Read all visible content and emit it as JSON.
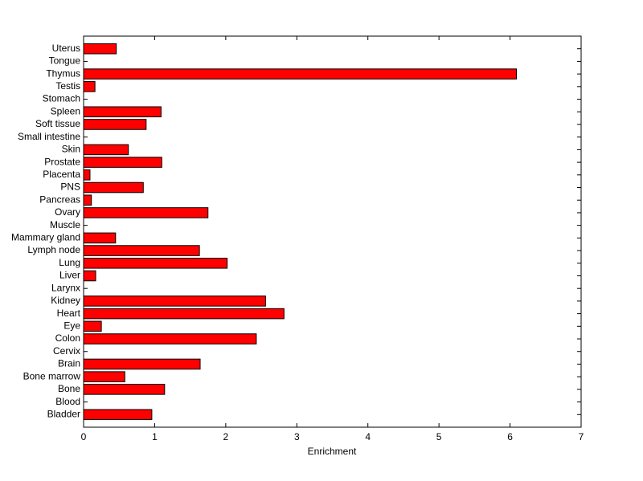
{
  "chart_data": {
    "type": "barh",
    "x_label": "Enrichment",
    "categories": [
      "Uterus",
      "Tongue",
      "Thymus",
      "Testis",
      "Stomach",
      "Spleen",
      "Soft tissue",
      "Small intestine",
      "Skin",
      "Prostate",
      "Placenta",
      "PNS",
      "Pancreas",
      "Ovary",
      "Muscle",
      "Mammary gland",
      "Lymph node",
      "Lung",
      "Liver",
      "Larynx",
      "Kidney",
      "Heart",
      "Eye",
      "Colon",
      "Cervix",
      "Brain",
      "Bone marrow",
      "Bone",
      "Blood",
      "Bladder"
    ],
    "values": [
      0.46,
      0,
      6.09,
      0.16,
      0,
      1.09,
      0.88,
      0,
      0.63,
      1.1,
      0.09,
      0.84,
      0.11,
      1.75,
      0,
      0.45,
      1.63,
      2.02,
      0.17,
      0,
      2.56,
      2.82,
      0.25,
      2.43,
      0,
      1.64,
      0.58,
      1.14,
      0,
      0.96
    ],
    "color": "#ff0000",
    "xlim": [
      0,
      7
    ],
    "xticks": [
      0,
      1,
      2,
      3,
      4,
      5,
      6,
      7
    ]
  }
}
